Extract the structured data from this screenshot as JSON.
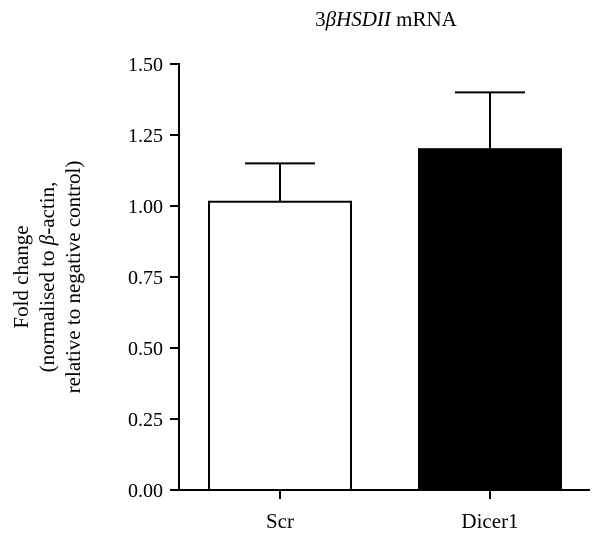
{
  "chart_data": {
    "type": "bar",
    "title": {
      "prefix": "3",
      "italic": "βHSDII",
      "suffix": " mRNA"
    },
    "ylabel_lines": [
      [
        {
          "text": "Fold change"
        }
      ],
      [
        {
          "text": "(normalised to "
        },
        {
          "text": "β",
          "italic": true
        },
        {
          "text": "-actin,"
        }
      ],
      [
        {
          "text": "relative to negative control)"
        }
      ]
    ],
    "categories": [
      "Scr",
      "Dicer1"
    ],
    "values": [
      1.015,
      1.2
    ],
    "errors": [
      0.135,
      0.2
    ],
    "bar_colors": [
      "#ffffff",
      "#000000"
    ],
    "ylim": [
      0,
      1.5
    ],
    "yticks": [
      "0.00",
      "0.25",
      "0.50",
      "0.75",
      "1.00",
      "1.25",
      "1.50"
    ],
    "grid": false
  }
}
